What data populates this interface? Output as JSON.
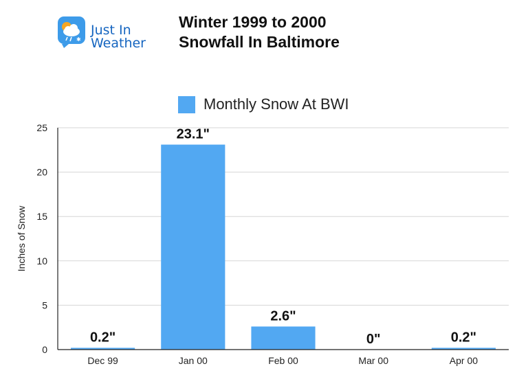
{
  "logo": {
    "line1": "Just In",
    "line2": "Weather"
  },
  "header": {
    "title_line1": "Winter 1999 to 2000",
    "title_line2": "Snowfall In Baltimore"
  },
  "colors": {
    "bar": "#52a8f2",
    "logo_blue": "#1565c0",
    "logo_orange": "#f5a623"
  },
  "chart_data": {
    "type": "bar",
    "categories": [
      "Dec 99",
      "Jan 00",
      "Feb 00",
      "Mar 00",
      "Apr 00"
    ],
    "series": [
      {
        "name": "Monthly Snow At BWI",
        "values": [
          0.2,
          23.1,
          2.6,
          0,
          0.2
        ]
      }
    ],
    "data_labels": [
      "0.2\"",
      "23.1\"",
      "2.6\"",
      "0\"",
      "0.2\""
    ],
    "ylabel": "Inches of Snow",
    "xlabel": "",
    "ylim": [
      0,
      25
    ],
    "yticks": [
      0,
      5,
      10,
      15,
      20,
      25
    ],
    "grid": true,
    "legend_position": "top"
  }
}
